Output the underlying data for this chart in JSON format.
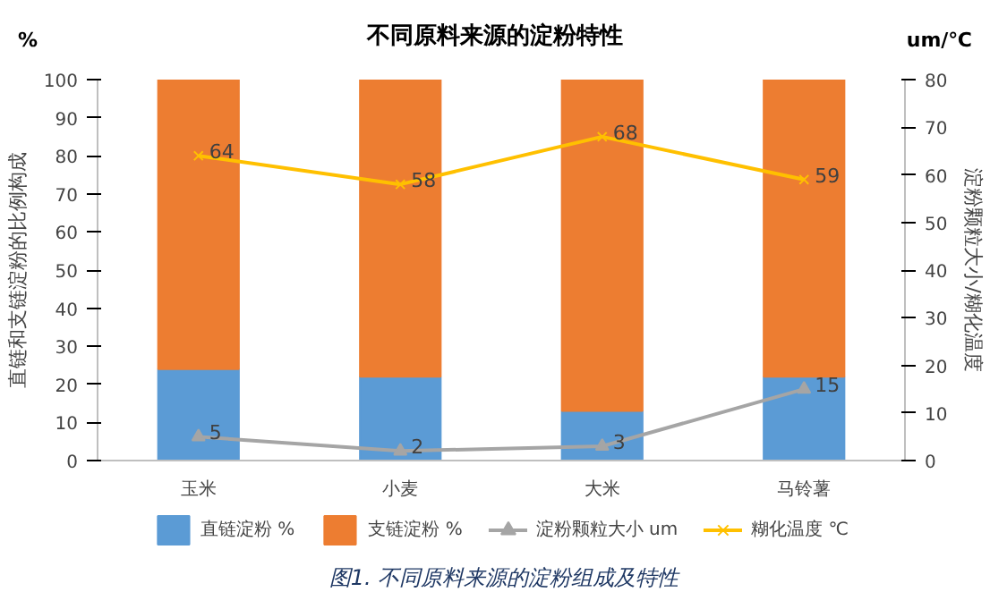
{
  "chart_data": {
    "type": "bar",
    "stacked": true,
    "title": "不同原料来源的淀粉特性",
    "ylabel": "直链和支链淀粉的比例构成",
    "y2label": "淀粉颗粒大小/糊化温度",
    "categories": [
      "玉米",
      "小麦",
      "大米",
      "马铃薯"
    ],
    "series": [
      {
        "name": "直链淀粉 %",
        "color": "#5b9bd5",
        "values": [
          24,
          22,
          13,
          22
        ]
      },
      {
        "name": "支链淀粉 %",
        "color": "#ed7d31",
        "values": [
          76,
          78,
          87,
          78
        ]
      },
      {
        "name": "淀粉颗粒大小 um",
        "type": "line",
        "axis": "y2",
        "marker": "triangle",
        "color": "#a5a5a5",
        "values": [
          5,
          2,
          3,
          15
        ],
        "value_labels": [
          "5",
          "2",
          "3",
          "15"
        ]
      },
      {
        "name": "糊化温度 ℃",
        "type": "line",
        "axis": "y2",
        "marker": "cross",
        "color": "#ffc000",
        "values": [
          64,
          58,
          68,
          59
        ],
        "value_labels": [
          "64",
          "58",
          "68",
          "59"
        ]
      }
    ],
    "ylim": [
      0,
      100
    ],
    "yticks": [
      0,
      10,
      20,
      30,
      40,
      50,
      60,
      70,
      80,
      90,
      100
    ],
    "y2lim": [
      0,
      80
    ],
    "y2ticks": [
      0,
      10,
      20,
      30,
      40,
      50,
      60,
      70,
      80
    ],
    "legend": "bottom",
    "annotations": [
      "%",
      "um/℃",
      "图1. 不同原料来源的淀粉组成及特性"
    ]
  }
}
